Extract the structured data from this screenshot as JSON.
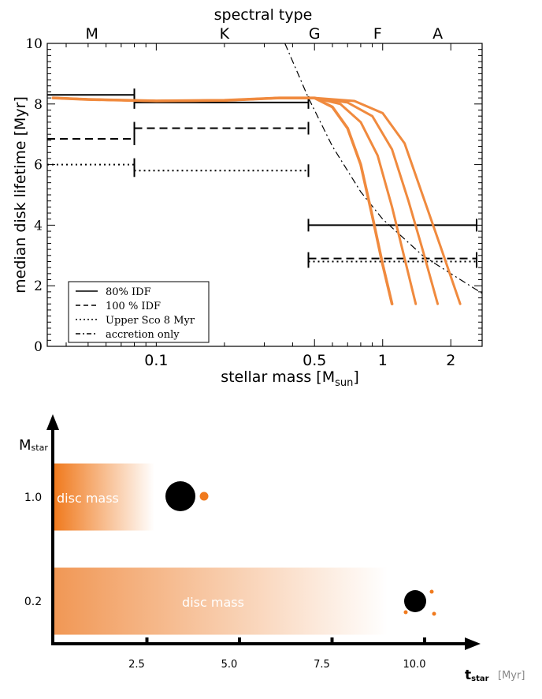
{
  "chart_data": [
    {
      "type": "line",
      "top_axis_label": "spectral type",
      "spectral_types": [
        "M",
        "K",
        "G",
        "F",
        "A"
      ],
      "xlabel_main": "stellar mass [M",
      "xlabel_sub": "sun",
      "xlabel_end": "]",
      "ylabel": "median disk lifetime [Myr]",
      "x_scale": "log",
      "xlim": [
        0.033,
        2.75
      ],
      "ylim": [
        0,
        10
      ],
      "x_ticks": [
        {
          "v": 0.1,
          "label": "0.1"
        },
        {
          "v": 0.5,
          "label": "0.5"
        },
        {
          "v": 1,
          "label": "1"
        },
        {
          "v": 2,
          "label": "2"
        }
      ],
      "y_ticks": [
        {
          "v": 0,
          "label": "0"
        },
        {
          "v": 2,
          "label": "2"
        },
        {
          "v": 4,
          "label": "4"
        },
        {
          "v": 6,
          "label": "6"
        },
        {
          "v": 8,
          "label": "8"
        },
        {
          "v": 10,
          "label": "10"
        }
      ],
      "legend_position": "bottom-left",
      "legend": [
        {
          "label": "80% IDF",
          "style": "solid"
        },
        {
          "label": "100 % IDF",
          "style": "dashed"
        },
        {
          "label": "Upper Sco 8 Myr",
          "style": "dotted"
        },
        {
          "label": "accretion only",
          "style": "dashdot"
        }
      ],
      "step_series": [
        {
          "style": "solid",
          "segments": [
            {
              "x": [
                0.033,
                0.08
              ],
              "y": 8.3
            },
            {
              "x": [
                0.08,
                0.47
              ],
              "y": 8.05
            },
            {
              "x": [
                0.47,
                2.6
              ],
              "y": 4.0
            }
          ]
        },
        {
          "style": "dashed",
          "segments": [
            {
              "x": [
                0.033,
                0.08
              ],
              "y": 6.85
            },
            {
              "x": [
                0.08,
                0.47
              ],
              "y": 7.2
            },
            {
              "x": [
                0.47,
                2.6
              ],
              "y": 2.9
            }
          ]
        },
        {
          "style": "dotted",
          "segments": [
            {
              "x": [
                0.033,
                0.08
              ],
              "y": 6.0
            },
            {
              "x": [
                0.08,
                0.47
              ],
              "y": 5.8
            },
            {
              "x": [
                0.47,
                2.6
              ],
              "y": 2.8
            }
          ]
        }
      ],
      "accretion_curve": {
        "x": [
          0.37,
          0.47,
          0.6,
          0.8,
          1.0,
          1.5,
          2.0,
          2.75
        ],
        "y": [
          10.0,
          8.2,
          6.6,
          5.1,
          4.2,
          3.0,
          2.4,
          1.75
        ]
      },
      "orange_curves": [
        {
          "x": [
            0.035,
            0.05,
            0.1,
            0.2,
            0.35,
            0.5,
            0.6,
            0.7,
            0.8,
            0.9,
            1.0,
            1.1
          ],
          "y": [
            8.2,
            8.15,
            8.1,
            8.12,
            8.2,
            8.2,
            7.9,
            7.2,
            6.0,
            4.3,
            2.7,
            1.4
          ]
        },
        {
          "x": [
            0.035,
            0.05,
            0.1,
            0.2,
            0.35,
            0.5,
            0.65,
            0.8,
            0.95,
            1.1,
            1.25,
            1.4
          ],
          "y": [
            8.2,
            8.15,
            8.1,
            8.12,
            8.2,
            8.2,
            8.0,
            7.4,
            6.3,
            4.6,
            2.9,
            1.4
          ]
        },
        {
          "x": [
            0.035,
            0.05,
            0.1,
            0.2,
            0.35,
            0.5,
            0.7,
            0.9,
            1.1,
            1.3,
            1.5,
            1.75
          ],
          "y": [
            8.2,
            8.15,
            8.1,
            8.12,
            8.2,
            8.2,
            8.05,
            7.6,
            6.5,
            4.8,
            3.2,
            1.4
          ]
        },
        {
          "x": [
            0.035,
            0.05,
            0.1,
            0.2,
            0.35,
            0.5,
            0.75,
            1.0,
            1.25,
            1.5,
            1.8,
            2.2
          ],
          "y": [
            8.2,
            8.15,
            8.1,
            8.12,
            8.2,
            8.2,
            8.1,
            7.7,
            6.7,
            5.0,
            3.3,
            1.4
          ]
        }
      ],
      "colors": {
        "curves": "#f08a3e",
        "lines": "#000000"
      }
    },
    {
      "type": "diagram",
      "y_axis_label_main": "M",
      "y_axis_label_sub": "star",
      "x_axis_label_main": "t",
      "x_axis_label_sub": "star",
      "x_axis_unit": "[Myr]",
      "x_ticks": [
        {
          "v": 2.5,
          "label": "2.5"
        },
        {
          "v": 5.0,
          "label": "5.0"
        },
        {
          "v": 7.5,
          "label": "7.5"
        },
        {
          "v": 10.0,
          "label": "10.0"
        }
      ],
      "rows": [
        {
          "mass_label": "1.0",
          "disc_label": "disc mass",
          "disc_end_myr": 2.7,
          "disc_color": "#f07a1e",
          "planets": 1
        },
        {
          "mass_label": "0.2",
          "disc_label": "disc mass",
          "disc_end_myr": 9.0,
          "disc_color": "#f0924c",
          "planets": 3
        }
      ],
      "colors": {
        "planet": "#f07a1e",
        "star": "#000000"
      }
    }
  ]
}
